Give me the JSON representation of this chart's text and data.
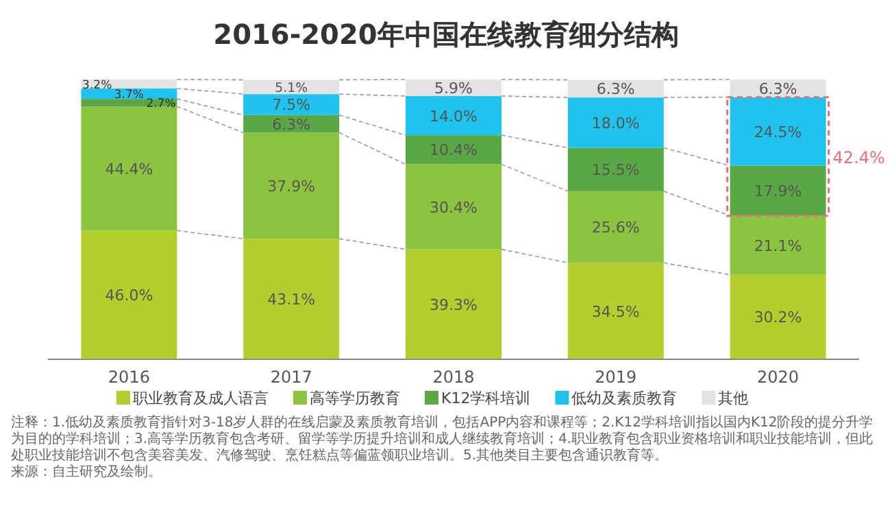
{
  "chart_data": {
    "type": "bar",
    "stacked": true,
    "title": "2016-2020年中国在线教育细分结构",
    "categories": [
      "2016",
      "2017",
      "2018",
      "2019",
      "2020"
    ],
    "ylim": [
      0,
      100
    ],
    "tick_labels": "x",
    "legend": "bottom",
    "series": [
      {
        "name": "职业教育及成人语言",
        "color": "#b3cf2e",
        "values": [
          46.0,
          43.1,
          39.3,
          34.5,
          30.2
        ],
        "value_labels": [
          "46.0%",
          "43.1%",
          "39.3%",
          "34.5%",
          "30.2%"
        ]
      },
      {
        "name": "高等学历教育",
        "color": "#8cc43f",
        "values": [
          44.4,
          37.9,
          30.4,
          25.6,
          21.1
        ],
        "value_labels": [
          "44.4%",
          "37.9%",
          "30.4%",
          "25.6%",
          "21.1%"
        ]
      },
      {
        "name": "K12学科培训",
        "color": "#5aa845",
        "values": [
          2.7,
          6.3,
          10.4,
          15.5,
          17.9
        ],
        "value_labels": [
          "2.7%",
          "6.3%",
          "10.4%",
          "15.5%",
          "17.9%"
        ]
      },
      {
        "name": "低幼及素质教育",
        "color": "#1fc3ee",
        "values": [
          3.7,
          7.5,
          14.0,
          18.0,
          24.5
        ],
        "value_labels": [
          "3.7%",
          "7.5%",
          "14.0%",
          "18.0%",
          "24.5%"
        ]
      },
      {
        "name": "其他",
        "color": "#e3e3e3",
        "values": [
          3.2,
          5.1,
          5.9,
          6.3,
          6.3
        ],
        "value_labels": [
          "3.2%",
          "5.1%",
          "5.9%",
          "6.3%",
          "6.3%"
        ]
      }
    ],
    "annotations": [
      "42.4%",
      "注释：1.低幼及素质教育指针对3-18岁人群的在线启蒙及素质教育培训，包括APP内容和课程等；2.K12学科培训指以国内K12阶段的提分升学为目的的学科培训；3.高等学历教育包含考研、留学等学历提升培训和成人继续教育培训；4.职业教育包含职业资格培训和职业技能培训，但此处职业技能培训不包含美容美发、汽修驾驶、烹饪糕点等偏蓝领职业培训。5.其他类目主要包含通识教育等。",
      "来源：自主研究及绘制。"
    ]
  }
}
